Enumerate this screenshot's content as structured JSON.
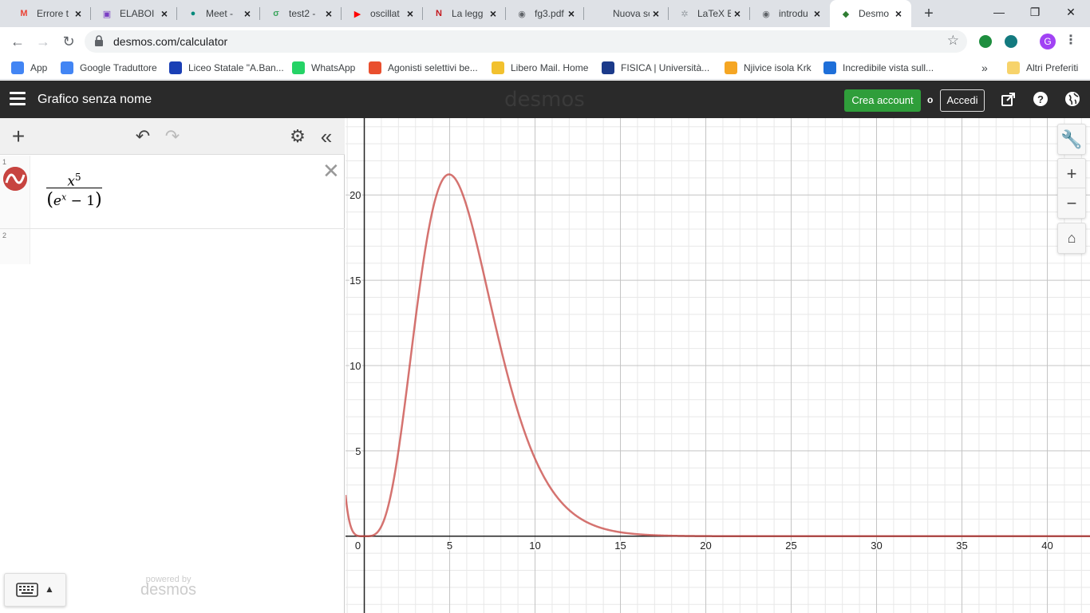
{
  "browser": {
    "tabs": [
      {
        "title": "Errore t",
        "fav_text": "M",
        "fav_color": "#ea4335"
      },
      {
        "title": "ELABOI",
        "fav_text": "▣",
        "fav_color": "#7b3fc4"
      },
      {
        "title": "Meet -",
        "fav_text": "●",
        "fav_color": "#00897b"
      },
      {
        "title": "test2 -",
        "fav_text": "σ",
        "fav_color": "#3ba55d"
      },
      {
        "title": "oscillat",
        "fav_text": "▶",
        "fav_color": "#ff0000"
      },
      {
        "title": "La legg",
        "fav_text": "N",
        "fav_color": "#c4161c"
      },
      {
        "title": "fg3.pdf",
        "fav_text": "◉",
        "fav_color": "#5f6368"
      },
      {
        "title": "Nuova sche",
        "fav_text": "",
        "fav_color": "#dee1e6"
      },
      {
        "title": "LaTeX E",
        "fav_text": "✲",
        "fav_color": "#9aa0a6"
      },
      {
        "title": "introdu",
        "fav_text": "◉",
        "fav_color": "#5f6368"
      },
      {
        "title": "Desmo",
        "fav_text": "◆",
        "fav_color": "#2f7d32"
      }
    ],
    "close_glyph": "×",
    "new_tab_glyph": "+",
    "window_controls": {
      "minimize": "—",
      "restore": "❐",
      "close": "✕"
    },
    "url": "desmos.com/calculator",
    "profile_initial": "G",
    "bookmarks": [
      {
        "label": "App",
        "color": "#4285f4"
      },
      {
        "label": "Google Traduttore",
        "color": "#4285f4"
      },
      {
        "label": "Liceo Statale \"A.Ban...",
        "color": "#1a3fb5"
      },
      {
        "label": "WhatsApp",
        "color": "#25d366"
      },
      {
        "label": "Agonisti selettivi be...",
        "color": "#e94f2e"
      },
      {
        "label": "Libero Mail. Home",
        "color": "#f2c12e"
      },
      {
        "label": "FISICA | Università...",
        "color": "#1b3a8a"
      },
      {
        "label": "Njivice isola Krk",
        "color": "#f5a623"
      },
      {
        "label": "Incredibile vista sull...",
        "color": "#1e6fd9"
      }
    ],
    "bookmarks_overflow": "»",
    "other_bookmarks": "Altri Preferiti"
  },
  "desmos": {
    "graph_title": "Grafico senza nome",
    "logo": "desmos",
    "create_account": "Crea account",
    "or": "o",
    "login": "Accedi",
    "expressions": [
      {
        "number": "1",
        "numerator_base": "x",
        "numerator_exp": "5",
        "denominator_base": "e",
        "denominator_exp": "x",
        "denominator_rest": "− 1",
        "color": "#c74440"
      },
      {
        "number": "2"
      }
    ],
    "powered_by": "powered by",
    "powered_logo": "desmos"
  },
  "chart_data": {
    "type": "line",
    "function": "x^5/(e^x - 1)",
    "xlim": [
      -1.1,
      42.5
    ],
    "ylim": [
      -4.5,
      24.5
    ],
    "x_ticks": [
      0,
      5,
      10,
      15,
      20,
      25,
      30,
      35,
      40
    ],
    "y_ticks": [
      5,
      10,
      15,
      20
    ],
    "x_tick_labels": [
      "0",
      "5",
      "10",
      "15",
      "20",
      "25",
      "30",
      "35",
      "40"
    ],
    "y_tick_labels": [
      "5",
      "10",
      "15",
      "20"
    ],
    "grid": true,
    "series_color": "#c74440",
    "peak": {
      "x": 4.97,
      "y": 21.2
    }
  }
}
